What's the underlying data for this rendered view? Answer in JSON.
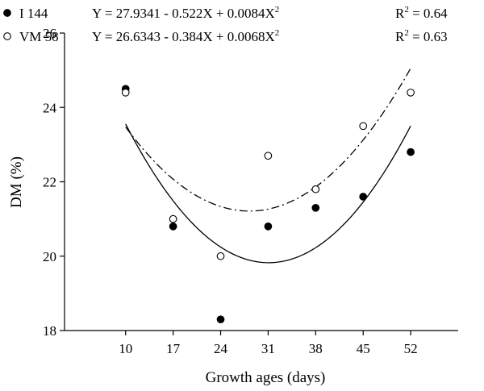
{
  "chart_data": {
    "type": "scatter",
    "xlabel": "Growth ages (days)",
    "ylabel": "DM (%)",
    "x_ticks": [
      10,
      17,
      24,
      31,
      38,
      45,
      52
    ],
    "y_ticks": [
      18,
      20,
      22,
      24,
      26
    ],
    "xlim": [
      1,
      59
    ],
    "ylim": [
      18,
      26
    ],
    "grid": false,
    "legend_position": "top-left",
    "series": [
      {
        "name": "I 144",
        "marker": "filled-circle",
        "line_style": "solid",
        "x": [
          10,
          17,
          24,
          31,
          38,
          45,
          52
        ],
        "y": [
          24.5,
          20.8,
          18.3,
          20.8,
          21.3,
          21.6,
          22.8
        ],
        "equation": "Y = 27.9341 - 0.522X +  0.0084X",
        "equation_sup": "2",
        "r2_label": "R",
        "r2_sup": "2",
        "r2_value": " = 0.64",
        "fit": {
          "a": 27.9341,
          "b": -0.522,
          "c": 0.0084
        }
      },
      {
        "name": "VM 58",
        "marker": "open-circle",
        "line_style": "dash-dot",
        "x": [
          10,
          17,
          24,
          31,
          38,
          45,
          52
        ],
        "y": [
          24.4,
          21.0,
          20.0,
          22.7,
          21.8,
          23.5,
          24.4
        ],
        "equation": "Y = 26.6343 - 0.384X +  0.0068X",
        "equation_sup": "2",
        "r2_label": "R",
        "r2_sup": "2",
        "r2_value": " = 0.63",
        "fit": {
          "a": 26.6343,
          "b": -0.384,
          "c": 0.0068
        }
      }
    ]
  },
  "colors": {
    "marker": "#000000",
    "background": "#ffffff"
  }
}
